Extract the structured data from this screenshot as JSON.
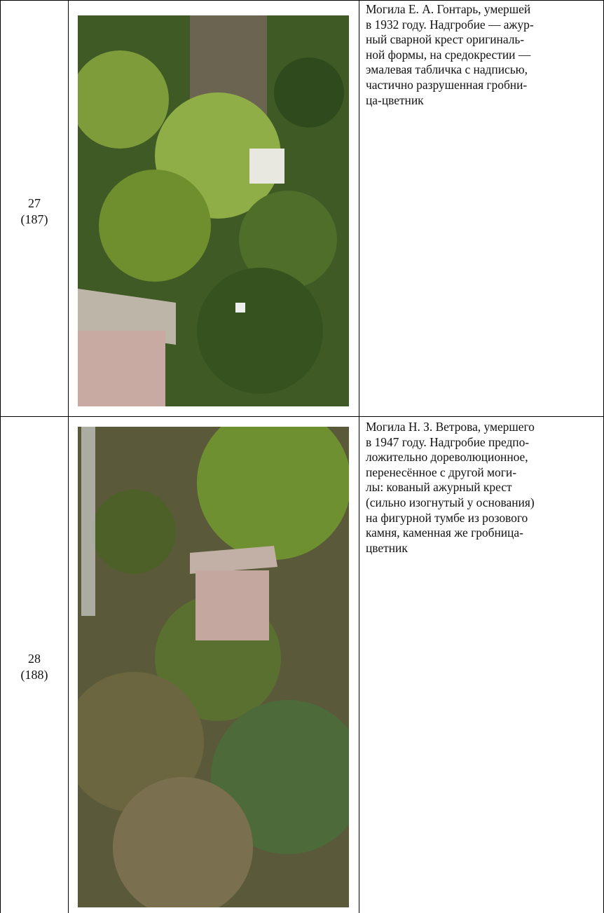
{
  "table": {
    "rows": [
      {
        "number": "27",
        "ref": "(187)",
        "description": [
          "Могила Е. А. Гонтарь, умершей",
          "в 1932 году. Надгробие — ажур-",
          "ный сварной крест оригиналь-",
          "ной формы, на средокрестии —",
          "эмалевая табличка с надписью,",
          "частично разрушенная гробни-",
          "ца-цветник"
        ]
      },
      {
        "number": "28",
        "ref": "(188)",
        "description": [
          "Могила Н. З. Ветрова, умершего",
          "в 1947 году. Надгробие предпо-",
          "ложительно дореволюционное,",
          "перенесённое с другой моги-",
          "лы: кованый ажурный крест",
          "(сильно изогнутый у основания)",
          "на фигурной тумбе из розового",
          "камня, каменная же гробница-",
          "цветник"
        ]
      }
    ]
  }
}
